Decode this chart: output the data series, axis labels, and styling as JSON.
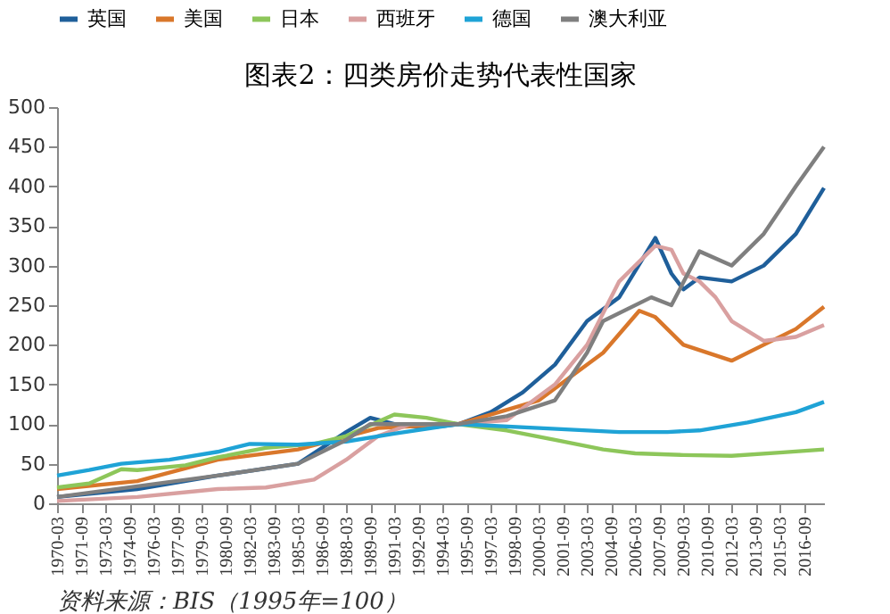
{
  "chart_data": {
    "type": "line",
    "title": "图表2：四类房价走势代表性国家",
    "annotations": [
      "资料来源：BIS（1995年=100）"
    ],
    "xlim": [
      "1970-03",
      "2017-12"
    ],
    "xticks": [
      "1970-03",
      "1971-09",
      "1973-03",
      "1974-09",
      "1976-03",
      "1977-09",
      "1979-03",
      "1980-09",
      "1982-03",
      "1983-09",
      "1985-03",
      "1986-09",
      "1988-03",
      "1989-09",
      "1991-03",
      "1992-09",
      "1994-03",
      "1995-09",
      "1997-03",
      "1998-09",
      "2000-03",
      "2001-09",
      "2003-03",
      "2004-09",
      "2006-03",
      "2007-09",
      "2009-03",
      "2010-09",
      "2012-03",
      "2013-09",
      "2015-03",
      "2016-09"
    ],
    "ylim": [
      0,
      500
    ],
    "yticks": [
      0,
      50,
      100,
      150,
      200,
      250,
      300,
      350,
      400,
      450,
      500
    ],
    "grid": false,
    "legend": "top",
    "marker": "none",
    "line_style": "solid",
    "series": [
      {
        "name": "英国",
        "color": "#1f5f9a",
        "x": [
          "1970-03",
          "1975-03",
          "1980-03",
          "1985-03",
          "1988-03",
          "1989-09",
          "1991-03",
          "1993-03",
          "1995-03",
          "1997-03",
          "1999-03",
          "2001-03",
          "2003-03",
          "2005-03",
          "2007-06",
          "2008-06",
          "2009-03",
          "2010-03",
          "2012-03",
          "2014-03",
          "2016-03",
          "2017-12"
        ],
        "values": [
          8,
          18,
          35,
          50,
          90,
          108,
          100,
          95,
          100,
          115,
          140,
          175,
          230,
          260,
          335,
          290,
          270,
          285,
          280,
          300,
          340,
          398
        ]
      },
      {
        "name": "美国",
        "color": "#d9772b",
        "x": [
          "1970-03",
          "1975-03",
          "1980-03",
          "1985-03",
          "1990-03",
          "1995-03",
          "2000-03",
          "2004-03",
          "2006-06",
          "2007-06",
          "2009-03",
          "2012-03",
          "2014-03",
          "2016-03",
          "2017-12"
        ],
        "values": [
          18,
          28,
          55,
          68,
          95,
          100,
          130,
          190,
          243,
          235,
          200,
          180,
          200,
          220,
          248
        ]
      },
      {
        "name": "日本",
        "color": "#8dc65a",
        "x": [
          "1970-03",
          "1972-03",
          "1974-03",
          "1975-03",
          "1978-03",
          "1980-03",
          "1983-03",
          "1986-03",
          "1988-03",
          "1991-03",
          "1993-03",
          "1995-03",
          "1998-03",
          "2001-03",
          "2004-03",
          "2006-03",
          "2009-03",
          "2012-03",
          "2015-03",
          "2017-12"
        ],
        "values": [
          20,
          25,
          43,
          42,
          48,
          58,
          70,
          75,
          85,
          112,
          108,
          100,
          92,
          80,
          68,
          63,
          61,
          60,
          64,
          68
        ]
      },
      {
        "name": "西班牙",
        "color": "#d9a0a0",
        "x": [
          "1970-03",
          "1975-03",
          "1980-03",
          "1983-03",
          "1986-03",
          "1988-03",
          "1990-03",
          "1992-03",
          "1995-03",
          "1998-03",
          "2001-03",
          "2003-03",
          "2005-03",
          "2007-06",
          "2008-06",
          "2009-03",
          "2010-03",
          "2011-03",
          "2012-03",
          "2014-03",
          "2016-03",
          "2017-12"
        ],
        "values": [
          3,
          8,
          18,
          20,
          30,
          55,
          85,
          100,
          100,
          105,
          150,
          200,
          280,
          325,
          320,
          290,
          280,
          260,
          230,
          205,
          210,
          225
        ]
      },
      {
        "name": "德国",
        "color": "#1fa3d6",
        "x": [
          "1970-03",
          "1972-03",
          "1974-03",
          "1977-03",
          "1980-03",
          "1982-03",
          "1985-03",
          "1988-03",
          "1991-03",
          "1995-03",
          "2000-03",
          "2005-03",
          "2008-03",
          "2010-03",
          "2013-03",
          "2016-03",
          "2017-12"
        ],
        "values": [
          35,
          42,
          50,
          55,
          65,
          75,
          74,
          78,
          88,
          100,
          95,
          90,
          90,
          92,
          102,
          115,
          128
        ]
      },
      {
        "name": "澳大利亚",
        "color": "#7f7f7f",
        "x": [
          "1970-03",
          "1980-03",
          "1985-03",
          "1988-03",
          "1989-09",
          "1995-03",
          "1998-03",
          "2001-03",
          "2003-03",
          "2004-03",
          "2007-03",
          "2008-06",
          "2010-03",
          "2012-03",
          "2014-03",
          "2016-03",
          "2017-12"
        ],
        "values": [
          8,
          35,
          50,
          80,
          100,
          100,
          110,
          130,
          190,
          230,
          260,
          250,
          318,
          300,
          340,
          400,
          450
        ]
      }
    ]
  }
}
